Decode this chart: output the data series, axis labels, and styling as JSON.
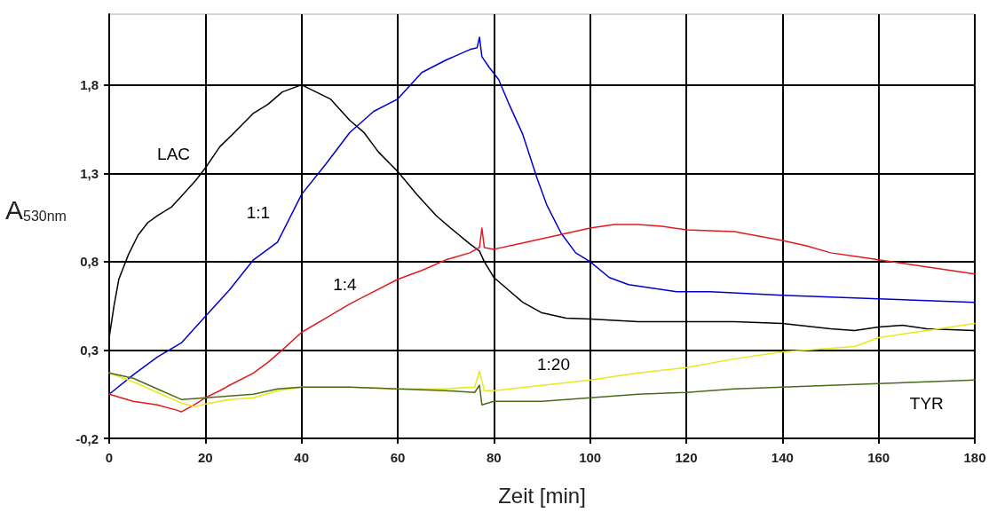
{
  "chart_data": {
    "type": "line",
    "xlabel": "Zeit [min]",
    "ylabel": "A$_{530nm}$",
    "xlim": [
      0,
      180
    ],
    "xticks": [
      0,
      20,
      40,
      60,
      80,
      100,
      120,
      140,
      160,
      180
    ],
    "ylim": [
      -0.2,
      2.2
    ],
    "yticks": [
      {
        "value": -0.2,
        "label": "-0,2"
      },
      {
        "value": 0.3,
        "label": "0,3"
      },
      {
        "value": 0.8,
        "label": "0,8"
      },
      {
        "value": 1.3,
        "label": "1,3"
      },
      {
        "value": 1.8,
        "label": "1,8"
      }
    ],
    "grid": true,
    "legend": false,
    "marker": "none",
    "line_style": "solid",
    "series": [
      {
        "name": "LAC",
        "color": "#000000",
        "x": [
          0,
          1,
          2,
          4,
          6,
          8,
          10,
          13,
          15,
          18,
          20,
          23,
          26,
          30,
          33,
          36,
          40,
          43,
          46,
          50,
          53,
          56,
          60,
          64,
          68,
          71,
          75,
          77,
          78,
          80,
          83,
          86,
          90,
          95,
          100,
          110,
          120,
          130,
          140,
          150,
          155,
          160,
          165,
          170,
          180
        ],
        "values": [
          0.37,
          0.55,
          0.7,
          0.84,
          0.95,
          1.02,
          1.06,
          1.11,
          1.17,
          1.26,
          1.33,
          1.45,
          1.53,
          1.64,
          1.69,
          1.76,
          1.8,
          1.76,
          1.72,
          1.6,
          1.53,
          1.42,
          1.31,
          1.18,
          1.06,
          0.99,
          0.9,
          0.86,
          0.8,
          0.71,
          0.64,
          0.57,
          0.51,
          0.48,
          0.475,
          0.46,
          0.46,
          0.46,
          0.45,
          0.42,
          0.41,
          0.43,
          0.44,
          0.42,
          0.41
        ]
      },
      {
        "name": "1:1",
        "color": "#0000cc",
        "x": [
          0,
          5,
          10,
          15,
          20,
          25,
          30,
          35,
          40,
          45,
          50,
          55,
          60,
          65,
          70,
          75,
          76.5,
          77,
          77.5,
          79,
          81,
          83,
          86,
          89,
          91,
          94,
          97,
          100,
          104,
          108,
          113,
          118,
          125,
          140,
          160,
          180
        ],
        "values": [
          0.05,
          0.16,
          0.26,
          0.34,
          0.49,
          0.64,
          0.81,
          0.91,
          1.18,
          1.35,
          1.53,
          1.65,
          1.72,
          1.87,
          1.94,
          2.0,
          2.01,
          2.07,
          1.96,
          1.9,
          1.83,
          1.7,
          1.52,
          1.27,
          1.12,
          0.96,
          0.85,
          0.8,
          0.71,
          0.67,
          0.65,
          0.63,
          0.63,
          0.61,
          0.59,
          0.57
        ]
      },
      {
        "name": "1:4",
        "color": "#e31a1c",
        "x": [
          0,
          5,
          10,
          14,
          15,
          18,
          20,
          23,
          25,
          30,
          33,
          36,
          40,
          45,
          50,
          55,
          60,
          65,
          70,
          75,
          77,
          77.5,
          78,
          80,
          85,
          90,
          95,
          100,
          105,
          110,
          115,
          120,
          130,
          140,
          145,
          150,
          155,
          160,
          165,
          170,
          175,
          180
        ],
        "values": [
          0.05,
          0.01,
          -0.01,
          -0.04,
          -0.05,
          -0.005,
          0.03,
          0.07,
          0.1,
          0.17,
          0.23,
          0.3,
          0.4,
          0.48,
          0.56,
          0.63,
          0.7,
          0.75,
          0.81,
          0.85,
          0.88,
          0.99,
          0.88,
          0.87,
          0.9,
          0.93,
          0.96,
          0.99,
          1.01,
          1.01,
          1.0,
          0.98,
          0.97,
          0.92,
          0.89,
          0.85,
          0.83,
          0.81,
          0.79,
          0.77,
          0.75,
          0.73
        ]
      },
      {
        "name": "1:20",
        "color": "#e8e81a",
        "x": [
          0,
          5,
          10,
          15,
          18,
          20,
          25,
          30,
          35,
          40,
          50,
          60,
          70,
          76,
          77,
          78,
          80,
          90,
          100,
          110,
          120,
          130,
          140,
          150,
          155,
          160,
          170,
          180
        ],
        "values": [
          0.17,
          0.12,
          0.06,
          0.0,
          -0.02,
          -0.005,
          0.02,
          0.03,
          0.07,
          0.09,
          0.09,
          0.08,
          0.08,
          0.09,
          0.18,
          0.07,
          0.07,
          0.1,
          0.13,
          0.17,
          0.2,
          0.25,
          0.29,
          0.31,
          0.32,
          0.37,
          0.41,
          0.45
        ]
      },
      {
        "name": "TYR",
        "color": "#4a6a1a",
        "x": [
          0,
          5,
          10,
          15,
          20,
          25,
          30,
          35,
          40,
          50,
          60,
          70,
          76,
          77,
          77.5,
          80,
          90,
          100,
          110,
          120,
          130,
          140,
          150,
          160,
          170,
          180
        ],
        "values": [
          0.17,
          0.14,
          0.08,
          0.02,
          0.03,
          0.04,
          0.05,
          0.08,
          0.09,
          0.09,
          0.08,
          0.07,
          0.06,
          0.1,
          -0.01,
          0.01,
          0.01,
          0.03,
          0.05,
          0.06,
          0.08,
          0.09,
          0.1,
          0.11,
          0.12,
          0.13
        ]
      }
    ]
  }
}
